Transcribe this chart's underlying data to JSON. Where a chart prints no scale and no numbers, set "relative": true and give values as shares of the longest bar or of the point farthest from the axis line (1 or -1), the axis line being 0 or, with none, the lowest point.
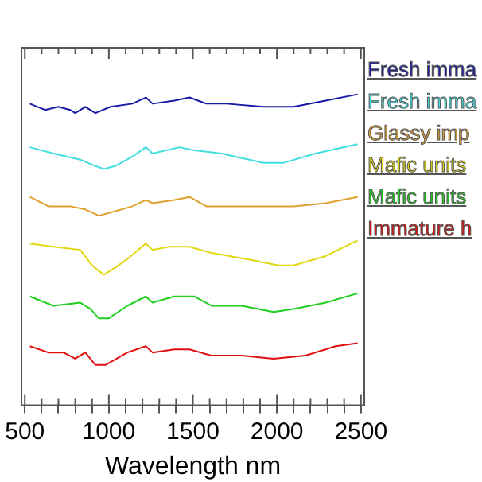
{
  "chart_data": {
    "type": "line",
    "xlabel": "Wavelength nm",
    "relative": true,
    "legend": "right",
    "marker": "none",
    "line_style": "solid",
    "grid": false,
    "xlim": [
      480,
      2520
    ],
    "xticks": [
      500,
      {
        "value": 600,
        "label": null
      },
      {
        "value": 700,
        "label": null
      },
      {
        "value": 800,
        "label": null
      },
      {
        "value": 900,
        "label": null
      },
      1000,
      {
        "value": 1100,
        "label": null
      },
      {
        "value": 1200,
        "label": null
      },
      {
        "value": 1300,
        "label": null
      },
      {
        "value": 1400,
        "label": null
      },
      1500,
      {
        "value": 1600,
        "label": null
      },
      {
        "value": 1700,
        "label": null
      },
      {
        "value": 1800,
        "label": null
      },
      {
        "value": 1900,
        "label": null
      },
      2000,
      {
        "value": 2100,
        "label": null
      },
      {
        "value": 2200,
        "label": null
      },
      {
        "value": 2300,
        "label": null
      },
      {
        "value": 2400,
        "label": null
      },
      2500
    ],
    "series": [
      {
        "name": "Fresh imma",
        "color": "#1a1aa8",
        "x": [
          530,
          620,
          700,
          770,
          800,
          860,
          920,
          1010,
          1140,
          1220,
          1260,
          1390,
          1480,
          1580,
          1700,
          1920,
          2100,
          2290,
          2480
        ],
        "values": [
          0.97,
          0.95,
          0.96,
          0.95,
          0.94,
          0.96,
          0.94,
          0.96,
          0.97,
          0.99,
          0.97,
          0.98,
          0.99,
          0.97,
          0.97,
          0.96,
          0.96,
          0.98,
          1
        ]
      },
      {
        "name": "Fresh imma",
        "color": "#40dede",
        "x": [
          530,
          670,
          830,
          920,
          970,
          1040,
          1140,
          1220,
          1260,
          1420,
          1510,
          1670,
          1920,
          2040,
          2230,
          2480
        ],
        "values": [
          0.83,
          0.81,
          0.79,
          0.77,
          0.76,
          0.77,
          0.8,
          0.83,
          0.81,
          0.83,
          0.82,
          0.81,
          0.78,
          0.78,
          0.81,
          0.84
        ]
      },
      {
        "name": "Glassy imp",
        "color": "#e0a030",
        "x": [
          530,
          640,
          770,
          860,
          940,
          1010,
          1140,
          1220,
          1260,
          1390,
          1480,
          1580,
          1760,
          1980,
          2100,
          2290,
          2480
        ],
        "values": [
          0.67,
          0.64,
          0.64,
          0.63,
          0.61,
          0.62,
          0.64,
          0.66,
          0.65,
          0.66,
          0.67,
          0.64,
          0.64,
          0.64,
          0.64,
          0.65,
          0.67
        ]
      },
      {
        "name": "Mafic units",
        "color": "#e0d810",
        "x": [
          530,
          670,
          830,
          900,
          970,
          1030,
          1110,
          1220,
          1260,
          1360,
          1480,
          1610,
          1820,
          2010,
          2100,
          2290,
          2480
        ],
        "values": [
          0.52,
          0.51,
          0.5,
          0.45,
          0.42,
          0.44,
          0.47,
          0.52,
          0.5,
          0.51,
          0.51,
          0.49,
          0.47,
          0.45,
          0.45,
          0.48,
          0.53
        ]
      },
      {
        "name": "Mafic units",
        "color": "#20d020",
        "x": [
          530,
          670,
          830,
          890,
          940,
          1000,
          1110,
          1220,
          1260,
          1390,
          1510,
          1610,
          1790,
          1980,
          2100,
          2290,
          2480
        ],
        "values": [
          0.35,
          0.32,
          0.33,
          0.31,
          0.28,
          0.28,
          0.32,
          0.35,
          0.33,
          0.35,
          0.35,
          0.32,
          0.32,
          0.3,
          0.31,
          0.33,
          0.36
        ]
      },
      {
        "name": "Immature h",
        "color": "#e01010",
        "x": [
          530,
          640,
          730,
          800,
          860,
          920,
          980,
          1110,
          1220,
          1260,
          1390,
          1480,
          1610,
          1790,
          1980,
          2170,
          2350,
          2480
        ],
        "values": [
          0.19,
          0.17,
          0.17,
          0.15,
          0.17,
          0.13,
          0.13,
          0.17,
          0.19,
          0.17,
          0.18,
          0.18,
          0.16,
          0.16,
          0.15,
          0.16,
          0.19,
          0.2
        ]
      }
    ]
  }
}
